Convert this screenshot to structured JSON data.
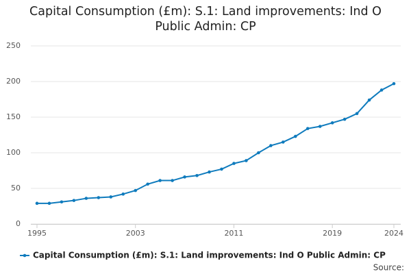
{
  "chart_data": {
    "type": "line",
    "title": "Capital Consumption (£m): S.1: Land improvements: Ind O Public Admin: CP",
    "x": [
      1995,
      1996,
      1997,
      1998,
      1999,
      2000,
      2001,
      2002,
      2003,
      2004,
      2005,
      2006,
      2007,
      2008,
      2009,
      2010,
      2011,
      2012,
      2013,
      2014,
      2015,
      2016,
      2017,
      2018,
      2019,
      2020,
      2021,
      2022,
      2023,
      2024
    ],
    "series": [
      {
        "name": "Capital Consumption (£m): S.1: Land improvements: Ind O Public Admin: CP",
        "color": "#0f7bbd",
        "values": [
          29,
          29,
          31,
          33,
          36,
          37,
          38,
          42,
          47,
          56,
          61,
          61,
          66,
          68,
          73,
          77,
          85,
          89,
          100,
          110,
          115,
          123,
          134,
          137,
          142,
          147,
          155,
          174,
          188,
          197
        ]
      }
    ],
    "xlim": [
      1995,
      2024
    ],
    "xticks": [
      1995,
      2003,
      2011,
      2019,
      2024
    ],
    "ylim": [
      0,
      250
    ],
    "yticks": [
      0,
      50,
      100,
      150,
      200,
      250
    ],
    "grid": true,
    "source_label": "Source:"
  }
}
